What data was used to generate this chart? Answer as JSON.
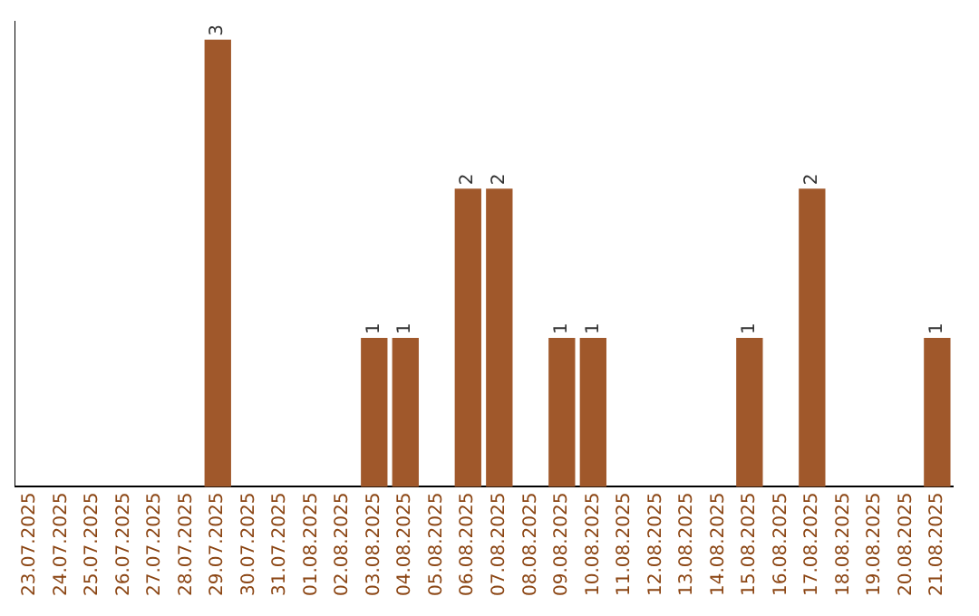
{
  "chart_data": {
    "type": "bar",
    "categories": [
      "23.07.2025",
      "24.07.2025",
      "25.07.2025",
      "26.07.2025",
      "27.07.2025",
      "28.07.2025",
      "29.07.2025",
      "30.07.2025",
      "31.07.2025",
      "01.08.2025",
      "02.08.2025",
      "03.08.2025",
      "04.08.2025",
      "05.08.2025",
      "06.08.2025",
      "07.08.2025",
      "08.08.2025",
      "09.08.2025",
      "10.08.2025",
      "11.08.2025",
      "12.08.2025",
      "13.08.2025",
      "14.08.2025",
      "15.08.2025",
      "16.08.2025",
      "17.08.2025",
      "18.08.2025",
      "19.08.2025",
      "20.08.2025",
      "21.08.2025"
    ],
    "values": [
      0,
      0,
      0,
      0,
      0,
      0,
      3,
      0,
      0,
      0,
      0,
      1,
      1,
      0,
      2,
      2,
      0,
      1,
      1,
      0,
      0,
      0,
      0,
      1,
      0,
      2,
      0,
      0,
      0,
      1
    ],
    "value_labels": [
      null,
      null,
      null,
      null,
      null,
      null,
      "3",
      null,
      null,
      null,
      null,
      "1",
      "1",
      null,
      "2",
      "2",
      null,
      "1",
      "1",
      null,
      null,
      null,
      null,
      "1",
      null,
      "2",
      null,
      null,
      null,
      "1"
    ],
    "color": "#a0582b",
    "grid": false,
    "legend": false,
    "tick_labels": "x"
  }
}
